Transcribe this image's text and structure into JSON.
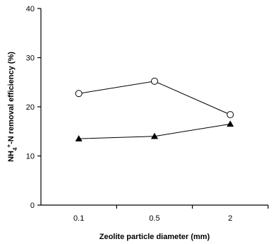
{
  "chart_data": {
    "type": "line",
    "xlabel": "Zeolite particle diameter (mm)",
    "ylabel": {
      "prefix": "NH",
      "sub": "4",
      "sup": "+",
      "suffix": "-N removal efficiency (%)"
    },
    "categories": [
      "0.1",
      "0.5",
      "2"
    ],
    "ylim": [
      0,
      40
    ],
    "yticks": [
      "0",
      "10",
      "20",
      "30",
      "40"
    ],
    "grid": false,
    "legend": "none",
    "series": [
      {
        "marker": "open-circle",
        "color": "#000000",
        "values": [
          22.7,
          25.2,
          18.4
        ]
      },
      {
        "marker": "filled-triangle",
        "color": "#000000",
        "values": [
          13.5,
          14.0,
          16.5
        ]
      }
    ]
  }
}
